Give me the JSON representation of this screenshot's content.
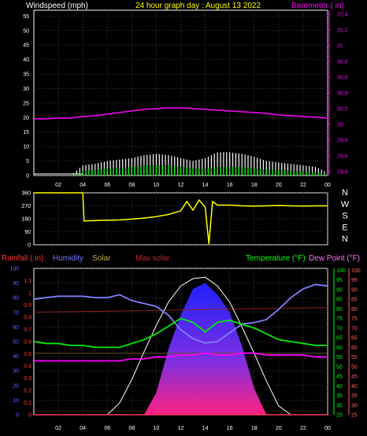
{
  "header": {
    "left_label": "Windspeed (mph)",
    "center_label": "24 hour graph day : August 13 2022",
    "right_label": "Barometer ( in)"
  },
  "bottom_header": {
    "rainfall": "Rainfall (.in)",
    "humidity": "Humidity",
    "solar": "Solar",
    "max_solar": "Max solar",
    "temperature": "Temperature (°F)",
    "dew_point": "Dew Point (°F)"
  },
  "colors": {
    "background": "#000000",
    "frame": "#ffffff",
    "grid": "#555555",
    "wind_avg": "#00ff00",
    "wind_gust": "#ffffff",
    "barometer": "#ff00ff",
    "direction": "#ffff00",
    "rain": "#ff3366",
    "humidity": "#8080ff",
    "solar_top": "#2020ff",
    "solar_bottom": "#ff2080",
    "max_solar": "#ffffff",
    "max_solar_label": "#cc2233",
    "solar_label": "#bbaa44",
    "temperature": "#00ee00",
    "dew_point": "#ff00ff",
    "dew_point_label": "#ff77ff",
    "humidity_label": "#7777ff",
    "temp_label": "#00ff00",
    "header_title": "#ffff00",
    "rain_axis": "#ff4040",
    "humidity_axis": "#6666ff",
    "temp_axis": "#00ff00",
    "dew_axis": "#ff6666"
  },
  "x_axis": {
    "ticks": [
      "02",
      "04",
      "06",
      "08",
      "10",
      "12",
      "14",
      "16",
      "18",
      "20",
      "22",
      "00"
    ]
  },
  "chart_data": [
    {
      "type": "line",
      "name": "wind_barometer",
      "x_hours": [
        0,
        1,
        2,
        3,
        4,
        5,
        6,
        7,
        8,
        9,
        10,
        11,
        12,
        13,
        14,
        15,
        16,
        17,
        18,
        19,
        20,
        21,
        22,
        23,
        24
      ],
      "wind_left_axis": {
        "ticks": [
          "0",
          "5",
          "10",
          "15",
          "20",
          "25",
          "30",
          "35",
          "40",
          "45",
          "50",
          "55"
        ],
        "ylim": [
          0,
          57
        ]
      },
      "barometer_right_axis": {
        "ticks": [
          "29.4",
          "29.6",
          "29.8",
          "30",
          "30.2",
          "30.4",
          "30.6",
          "30.8",
          "31",
          "31.2",
          "31.4"
        ],
        "ylim": [
          29.35,
          31.45
        ]
      },
      "barometer": [
        30.07,
        30.07,
        30.08,
        30.08,
        30.1,
        30.11,
        30.13,
        30.15,
        30.17,
        30.19,
        30.2,
        30.21,
        30.21,
        30.2,
        30.19,
        30.18,
        30.17,
        30.16,
        30.15,
        30.14,
        30.12,
        30.11,
        30.1,
        30.09,
        30.08
      ],
      "wind_avg": [
        0,
        0,
        0,
        0,
        1.5,
        2,
        2.5,
        2.5,
        3,
        3.5,
        3.5,
        3.5,
        3,
        2.5,
        2.5,
        3,
        3,
        3,
        2.5,
        2,
        2,
        1.5,
        1.5,
        1.2,
        0.5
      ],
      "wind_gust": [
        0,
        0,
        0,
        0,
        3.5,
        4,
        5,
        5.5,
        6,
        7,
        7.5,
        7,
        6,
        5,
        6,
        8,
        8,
        7.5,
        6.5,
        5,
        4.5,
        4,
        3.5,
        3,
        1
      ]
    },
    {
      "type": "line",
      "name": "wind_direction",
      "y_axis": {
        "ticks": [
          "0",
          "90",
          "180",
          "270",
          "360"
        ],
        "ylim": [
          0,
          360
        ]
      },
      "compass_labels": [
        "N",
        "W",
        "S",
        "E",
        "N"
      ],
      "x_hours": [
        0,
        1,
        2,
        3,
        4,
        4.1,
        5,
        6,
        7,
        8,
        9,
        10,
        11,
        12,
        12.5,
        13,
        13.5,
        14,
        14.3,
        14.6,
        15,
        16,
        17,
        18,
        19,
        20,
        21,
        22,
        23,
        24
      ],
      "direction": [
        360,
        360,
        360,
        360,
        360,
        165,
        168,
        170,
        172,
        178,
        185,
        195,
        210,
        235,
        300,
        240,
        310,
        260,
        5,
        300,
        275,
        275,
        270,
        268,
        270,
        272,
        270,
        268,
        270,
        270
      ]
    },
    {
      "type": "area",
      "name": "temp_humidity_solar",
      "x_hours": [
        0,
        1,
        2,
        3,
        4,
        5,
        6,
        7,
        8,
        9,
        10,
        11,
        12,
        13,
        14,
        15,
        16,
        17,
        18,
        19,
        20,
        21,
        22,
        23,
        24
      ],
      "rain_axis": {
        "ticks": [
          "0",
          "0.1",
          "0.2",
          "0.3",
          "0.4",
          "0.5",
          "0.6",
          "0.7",
          "0.8",
          "0.9",
          "1",
          "1.1"
        ],
        "ylim": [
          0,
          1.2
        ]
      },
      "humidity_axis": {
        "ticks": [
          "0",
          "10",
          "20",
          "30",
          "40",
          "50",
          "60",
          "70",
          "80",
          "90",
          "100"
        ],
        "ylim": [
          0,
          100
        ]
      },
      "temp_axis": {
        "ticks": [
          "25",
          "30",
          "35",
          "40",
          "45",
          "50",
          "55",
          "60",
          "65",
          "70",
          "75",
          "80",
          "85",
          "90",
          "95",
          "100"
        ],
        "ylim": [
          25,
          101
        ]
      },
      "dew_axis": {
        "ticks": [
          "25",
          "30",
          "35",
          "40",
          "45",
          "50",
          "55",
          "60",
          "65",
          "70",
          "75",
          "80",
          "85",
          "90",
          "95",
          "100"
        ],
        "ylim": [
          25,
          101
        ]
      },
      "humidity": [
        79,
        80,
        81,
        81,
        81,
        80,
        80,
        82,
        78,
        76,
        74,
        68,
        58,
        52,
        49,
        50,
        56,
        62,
        63,
        65,
        72,
        80,
        86,
        89,
        88
      ],
      "temperature": [
        63,
        62,
        62,
        61,
        61,
        60,
        60,
        60,
        62,
        64,
        67,
        71,
        75,
        73,
        68,
        73,
        74,
        72,
        70,
        67,
        64,
        63,
        62,
        61,
        61
      ],
      "dew_point": [
        53,
        53,
        53,
        53,
        53,
        53,
        53,
        53,
        54,
        54,
        55,
        55,
        56,
        56,
        57,
        56,
        56,
        57,
        57,
        56,
        56,
        56,
        56,
        55,
        55
      ],
      "solar": [
        0,
        0,
        0,
        0,
        0,
        0,
        0,
        0,
        0,
        0,
        150,
        450,
        680,
        860,
        900,
        820,
        700,
        470,
        180,
        0,
        0,
        0,
        0,
        0,
        0
      ],
      "solar_scale_max": 1000,
      "max_solar": [
        0,
        0,
        0,
        0,
        0,
        0,
        0,
        80,
        240,
        430,
        610,
        770,
        880,
        930,
        940,
        880,
        770,
        600,
        420,
        230,
        60,
        0,
        0,
        0,
        0
      ],
      "max_solar_threshold_line": 700,
      "solar_threshold_line": 420,
      "rainfall": [
        0,
        0,
        0,
        0,
        0,
        0,
        0,
        0,
        0,
        0,
        0,
        0,
        0,
        0,
        0,
        0,
        0,
        0,
        0,
        0,
        0,
        0,
        0,
        0,
        0
      ]
    }
  ]
}
